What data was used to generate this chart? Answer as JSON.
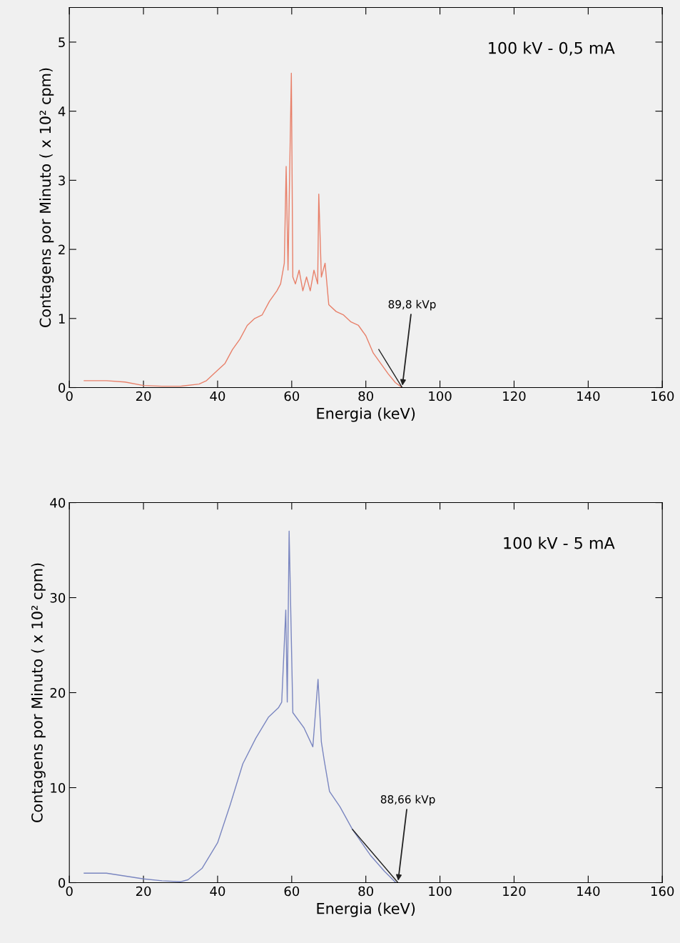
{
  "chart_data": [
    {
      "type": "line",
      "xlabel": "Energia (keV)",
      "ylabel": "Contagens por Minuto ( x 10² cpm)",
      "xlim": [
        0,
        160
      ],
      "xticks": [
        0,
        20,
        40,
        60,
        80,
        100,
        120,
        140,
        160
      ],
      "ylim": [
        0,
        5.5
      ],
      "yticks": [
        0,
        1,
        2,
        3,
        4,
        5
      ],
      "annotations": [
        "100 kV - 0,5 mA",
        {
          "text": "89,8 kVp",
          "x": 89.8,
          "y": 0
        }
      ],
      "series": [
        {
          "color": "#e8806a",
          "x": [
            4,
            10,
            15,
            20,
            25,
            30,
            35,
            37,
            40,
            42,
            44,
            46,
            48,
            50,
            52,
            54,
            56,
            57,
            58,
            58.5,
            59,
            59.9,
            60.3,
            61,
            62,
            63,
            64,
            65,
            66,
            67,
            67.3,
            68,
            69,
            70,
            72,
            74,
            76,
            78,
            80,
            82,
            84,
            86,
            88,
            89.8
          ],
          "values": [
            0.1,
            0.1,
            0.08,
            0.03,
            0.02,
            0.02,
            0.05,
            0.1,
            0.25,
            0.35,
            0.55,
            0.7,
            0.9,
            1.0,
            1.05,
            1.25,
            1.4,
            1.5,
            1.8,
            3.2,
            1.7,
            4.55,
            1.6,
            1.5,
            1.7,
            1.4,
            1.6,
            1.4,
            1.7,
            1.5,
            2.8,
            1.6,
            1.8,
            1.2,
            1.1,
            1.05,
            0.95,
            0.9,
            0.75,
            0.5,
            0.35,
            0.2,
            0.07,
            0
          ]
        },
        {
          "type": "line",
          "color": "#222222",
          "x": [
            83.5,
            89.8
          ],
          "values": [
            0.55,
            0
          ]
        }
      ]
    },
    {
      "type": "line",
      "xlabel": "Energia (keV)",
      "ylabel": "Contagens por Minuto ( x 10² cpm)",
      "xlim": [
        0,
        160
      ],
      "xticks": [
        0,
        20,
        40,
        60,
        80,
        100,
        120,
        140,
        160
      ],
      "ylim": [
        0,
        40
      ],
      "yticks": [
        0,
        10,
        20,
        30,
        40
      ],
      "annotations": [
        "100 kV - 5 mA",
        {
          "text": "88,66 kVp",
          "x": 88.66,
          "y": 0
        }
      ],
      "series": [
        {
          "color": "#7a86c0",
          "x": [
            4,
            10,
            15,
            20,
            25,
            30,
            32,
            35.8,
            40,
            43.4,
            46.8,
            50.3,
            53.7,
            56.4,
            57.3,
            58.4,
            58.8,
            59.3,
            60.3,
            63.3,
            65.7,
            67.1,
            68,
            68.8,
            70.2,
            73,
            76.4,
            81.2,
            85,
            88.1
          ],
          "values": [
            1.0,
            1.0,
            0.7,
            0.4,
            0.2,
            0.1,
            0.3,
            1.5,
            4.2,
            8.2,
            12.5,
            15.2,
            17.4,
            18.4,
            19,
            28.7,
            19,
            37,
            17.9,
            16.3,
            14.3,
            21.4,
            14.8,
            12.8,
            9.6,
            8.0,
            5.6,
            2.9,
            1.2,
            0
          ]
        },
        {
          "type": "line",
          "color": "#222222",
          "x": [
            76.4,
            88.66
          ],
          "values": [
            5.6,
            0
          ]
        }
      ]
    }
  ]
}
